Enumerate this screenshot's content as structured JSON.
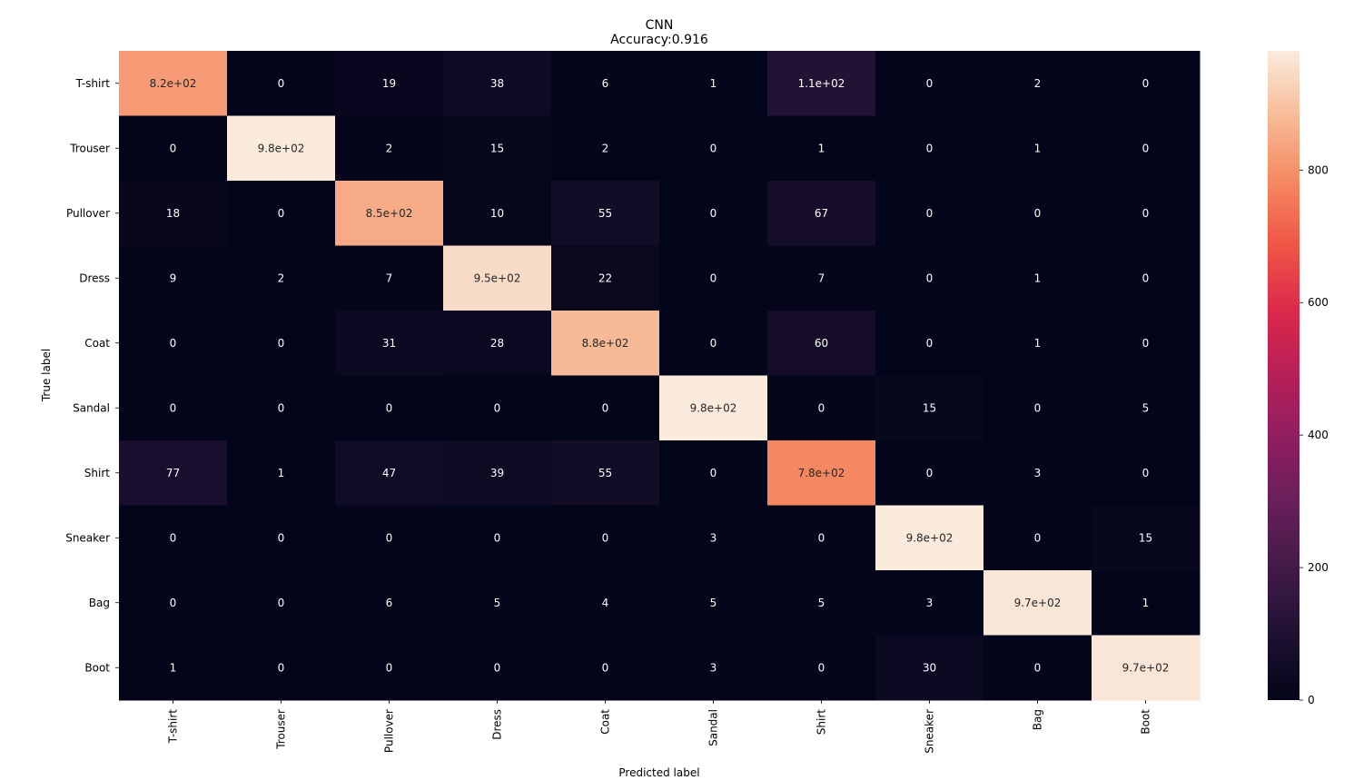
{
  "chart_data": {
    "type": "heatmap",
    "title": "CNN",
    "subtitle": "Accuracy:0.916",
    "xlabel": "Predicted label",
    "ylabel": "True label",
    "x_categories": [
      "T-shirt",
      "Trouser",
      "Pullover",
      "Dress",
      "Coat",
      "Sandal",
      "Shirt",
      "Sneaker",
      "Bag",
      "Boot"
    ],
    "y_categories": [
      "T-shirt",
      "Trouser",
      "Pullover",
      "Dress",
      "Coat",
      "Sandal",
      "Shirt",
      "Sneaker",
      "Bag",
      "Boot"
    ],
    "values": [
      [
        820,
        0,
        19,
        38,
        6,
        1,
        110,
        0,
        2,
        0
      ],
      [
        0,
        980,
        2,
        15,
        2,
        0,
        1,
        0,
        1,
        0
      ],
      [
        18,
        0,
        850,
        10,
        55,
        0,
        67,
        0,
        0,
        0
      ],
      [
        9,
        2,
        7,
        950,
        22,
        0,
        7,
        0,
        1,
        0
      ],
      [
        0,
        0,
        31,
        28,
        880,
        0,
        60,
        0,
        1,
        0
      ],
      [
        0,
        0,
        0,
        0,
        0,
        980,
        0,
        15,
        0,
        5
      ],
      [
        77,
        1,
        47,
        39,
        55,
        0,
        780,
        0,
        3,
        0
      ],
      [
        0,
        0,
        0,
        0,
        0,
        3,
        0,
        980,
        0,
        15
      ],
      [
        0,
        0,
        6,
        5,
        4,
        5,
        5,
        3,
        970,
        1
      ],
      [
        1,
        0,
        0,
        0,
        0,
        3,
        0,
        30,
        0,
        970
      ]
    ],
    "annotations": [
      [
        "8.2e+02",
        "0",
        "19",
        "38",
        "6",
        "1",
        "1.1e+02",
        "0",
        "2",
        "0"
      ],
      [
        "0",
        "9.8e+02",
        "2",
        "15",
        "2",
        "0",
        "1",
        "0",
        "1",
        "0"
      ],
      [
        "18",
        "0",
        "8.5e+02",
        "10",
        "55",
        "0",
        "67",
        "0",
        "0",
        "0"
      ],
      [
        "9",
        "2",
        "7",
        "9.5e+02",
        "22",
        "0",
        "7",
        "0",
        "1",
        "0"
      ],
      [
        "0",
        "0",
        "31",
        "28",
        "8.8e+02",
        "0",
        "60",
        "0",
        "1",
        "0"
      ],
      [
        "0",
        "0",
        "0",
        "0",
        "0",
        "9.8e+02",
        "0",
        "15",
        "0",
        "5"
      ],
      [
        "77",
        "1",
        "47",
        "39",
        "55",
        "0",
        "7.8e+02",
        "0",
        "3",
        "0"
      ],
      [
        "0",
        "0",
        "0",
        "0",
        "0",
        "3",
        "0",
        "9.8e+02",
        "0",
        "15"
      ],
      [
        "0",
        "0",
        "6",
        "5",
        "4",
        "5",
        "5",
        "3",
        "9.7e+02",
        "1"
      ],
      [
        "1",
        "0",
        "0",
        "0",
        "0",
        "3",
        "0",
        "30",
        "0",
        "9.7e+02"
      ]
    ],
    "colorbar": {
      "vmin": 0,
      "vmax": 980,
      "ticks": [
        0,
        200,
        400,
        600,
        800
      ]
    },
    "colormap": "rocket",
    "grid": false
  }
}
